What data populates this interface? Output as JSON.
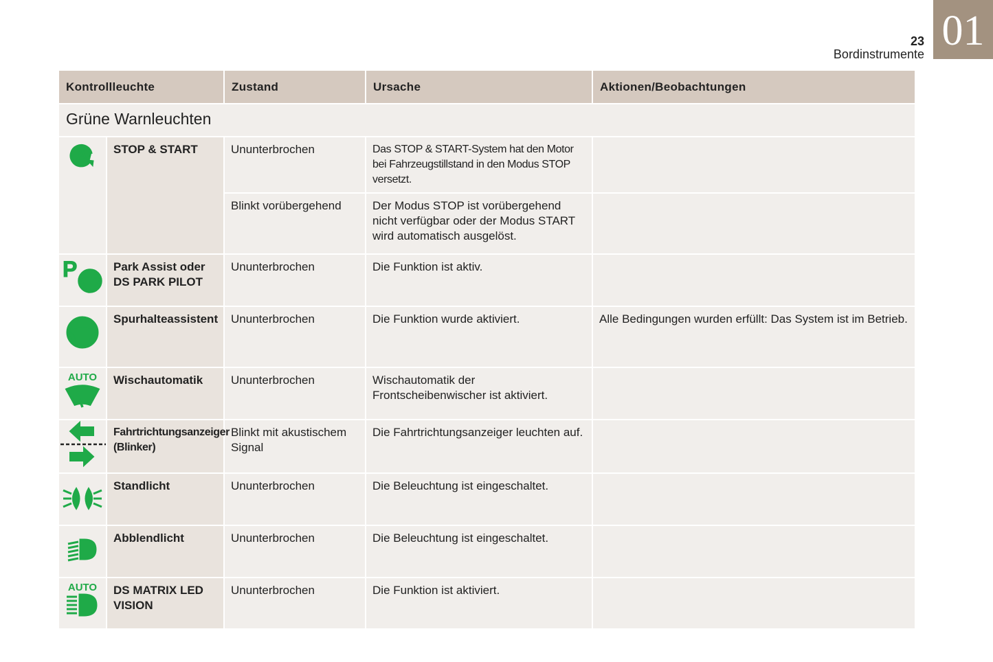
{
  "page": {
    "chapter": "01",
    "number": "23",
    "title": "Bordinstrumente"
  },
  "table": {
    "headers": [
      "Kontrollleuchte",
      "Zustand",
      "Ursache",
      "Aktionen/Beobachtungen"
    ],
    "section": "Grüne Warnleuchten",
    "rows": [
      {
        "icon": "stop-start-icon",
        "name": "STOP & START",
        "entries": [
          {
            "state": "Ununterbrochen",
            "cause": "Das STOP & START-System hat den Motor bei Fahrzeugstillstand in den Modus STOP versetzt.",
            "action": ""
          },
          {
            "state": "Blinkt vorübergehend",
            "cause": "Der Modus STOP ist vorübergehend nicht verfügbar oder der Modus START wird automatisch ausgelöst.",
            "action": ""
          }
        ]
      },
      {
        "icon": "park-assist-icon",
        "name": "Park Assist oder DS PARK PILOT",
        "state": "Ununterbrochen",
        "cause": "Die Funktion ist aktiv.",
        "action": ""
      },
      {
        "icon": "steering-wheel-icon",
        "name": "Spurhalteassistent",
        "state": "Ununterbrochen",
        "cause": "Die Funktion wurde aktiviert.",
        "action": "Alle Bedingungen wurden erfüllt: Das System ist im Betrieb."
      },
      {
        "icon": "auto-wiper-icon",
        "icon_text": "AUTO",
        "name": "Wischautomatik",
        "state": "Ununterbrochen",
        "cause": "Wischautomatik der Frontscheibenwischer ist aktiviert.",
        "action": ""
      },
      {
        "icon": "turn-signal-icon",
        "name": "Fahrtrichtungsanzeiger (Blinker)",
        "state": "Blinkt mit akustischem Signal",
        "cause": "Die Fahrtrichtungsanzeiger leuchten auf.",
        "action": ""
      },
      {
        "icon": "side-lights-icon",
        "name": "Standlicht",
        "state": "Ununterbrochen",
        "cause": "Die Beleuchtung ist eingeschaltet.",
        "action": ""
      },
      {
        "icon": "low-beam-icon",
        "name": "Abblendlicht",
        "state": "Ununterbrochen",
        "cause": "Die Beleuchtung ist eingeschaltet.",
        "action": ""
      },
      {
        "icon": "matrix-led-icon",
        "icon_text": "AUTO",
        "name": "DS MATRIX LED VISION",
        "state": "Ununterbrochen",
        "cause": "Die Funktion ist aktiviert.",
        "action": ""
      }
    ]
  },
  "colors": {
    "indicator_green": "#1faa48",
    "header_bg": "#d5c9bf",
    "chapter_tab": "#a39280"
  }
}
